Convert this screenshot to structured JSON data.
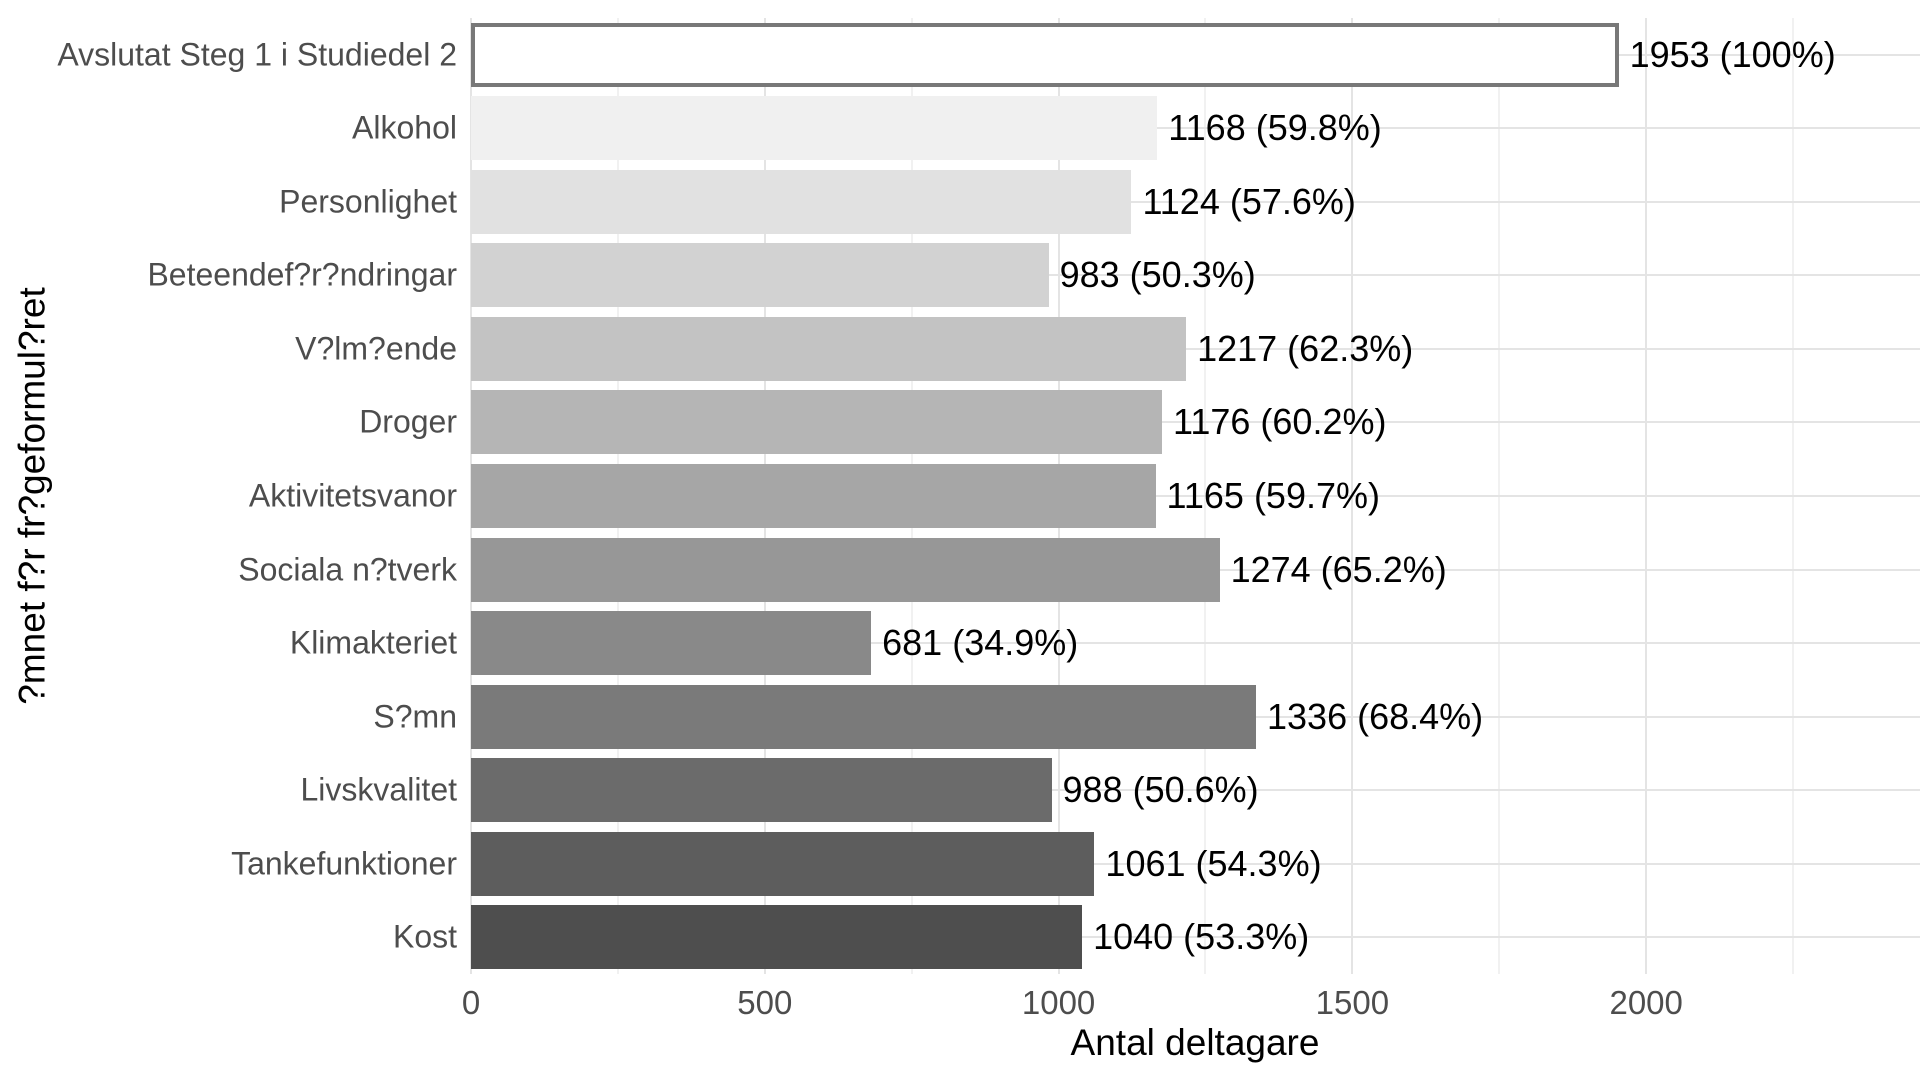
{
  "chart_data": {
    "type": "bar",
    "orientation": "horizontal",
    "title": "",
    "xlabel": "Antal deltagare",
    "ylabel": "?mnet f?r fr?geformul?ret",
    "categories": [
      "Avslutat Steg 1 i Studiedel 2",
      "Alkohol",
      "Personlighet",
      "Beteendef?r?ndringar",
      "V?lm?ende",
      "Droger",
      "Aktivitetsvanor",
      "Sociala n?tverk",
      "Klimakteriet",
      "S?mn",
      "Livskvalitet",
      "Tankefunktioner",
      "Kost"
    ],
    "values": [
      1953,
      1168,
      1124,
      983,
      1217,
      1176,
      1165,
      1274,
      681,
      1336,
      988,
      1061,
      1040
    ],
    "value_labels": [
      "1953 (100%)",
      "1168 (59.8%)",
      "1124 (57.6%)",
      "983 (50.3%)",
      "1217 (62.3%)",
      "1176 (60.2%)",
      "1165 (59.7%)",
      "1274 (65.2%)",
      "681 (34.9%)",
      "1336 (68.4%)",
      "988 (50.6%)",
      "1061 (54.3%)",
      "1040 (53.3%)"
    ],
    "bar_colors": [
      "#ffffff",
      "#f0f0f0",
      "#e1e1e1",
      "#d2d2d2",
      "#c3c3c3",
      "#b5b5b5",
      "#a6a6a6",
      "#979797",
      "#898989",
      "#7a7a7a",
      "#6b6b6b",
      "#5d5d5d",
      "#4e4e4e"
    ],
    "highlight_bar_index": 0,
    "highlight_border_color": "#787878",
    "highlight_border_width_px": 4,
    "x_ticks": [
      0,
      500,
      1000,
      1500,
      2000
    ],
    "x_tick_labels": [
      "0",
      "500",
      "1000",
      "1500",
      "2000"
    ],
    "x_minor_ticks": [
      250,
      750,
      1250,
      1750,
      2250
    ],
    "xlim": [
      0,
      2466
    ],
    "grid": true,
    "grid_major_color": "#e4e4e4",
    "grid_minor_color": "#f1f1f1",
    "axis_text_color": "#4d4d4d",
    "value_label_color": "#000000",
    "background_color": "#ffffff",
    "legend": "none"
  }
}
